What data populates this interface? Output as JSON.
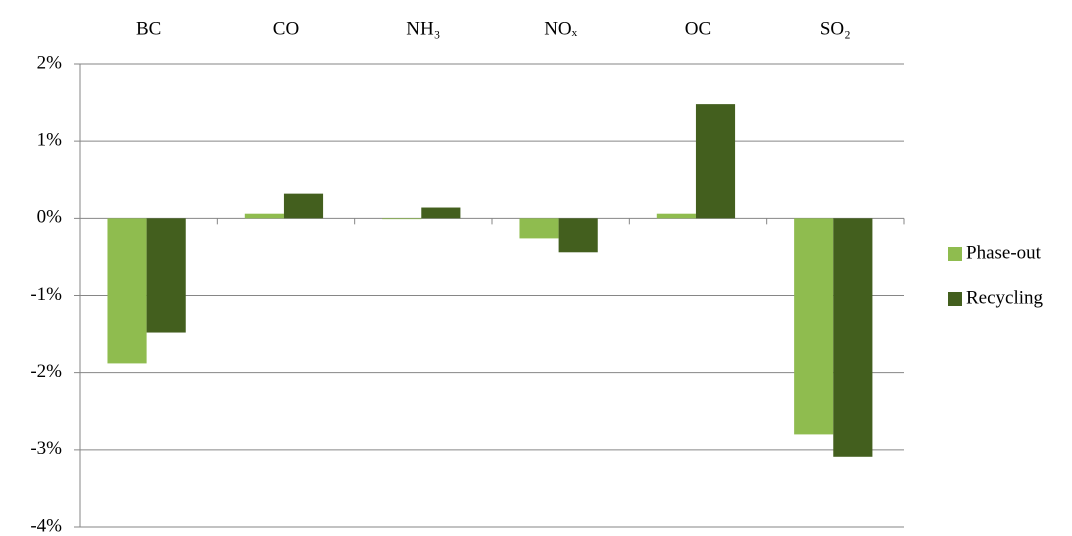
{
  "chart_data": {
    "type": "bar",
    "categories": [
      "BC",
      "CO",
      "NH₃",
      "NOₓ",
      "OC",
      "SO₂"
    ],
    "series": [
      {
        "name": "Phase-out",
        "color": "#8fbc4f",
        "values": [
          -1.88,
          0.06,
          -0.01,
          -0.26,
          0.06,
          -2.8
        ]
      },
      {
        "name": "Recycling",
        "color": "#435f1e",
        "values": [
          -1.48,
          0.32,
          0.14,
          -0.44,
          1.48,
          -3.09
        ]
      }
    ],
    "ylim": [
      -4,
      2
    ],
    "yticks": [
      {
        "value": -4,
        "label": "-4%"
      },
      {
        "value": -3,
        "label": "-3%"
      },
      {
        "value": -2,
        "label": "-2%"
      },
      {
        "value": -1,
        "label": "-1%"
      },
      {
        "value": 0,
        "label": "0%"
      },
      {
        "value": 1,
        "label": "1%"
      },
      {
        "value": 2,
        "label": "2%"
      }
    ],
    "grid": true,
    "legend": "right"
  }
}
